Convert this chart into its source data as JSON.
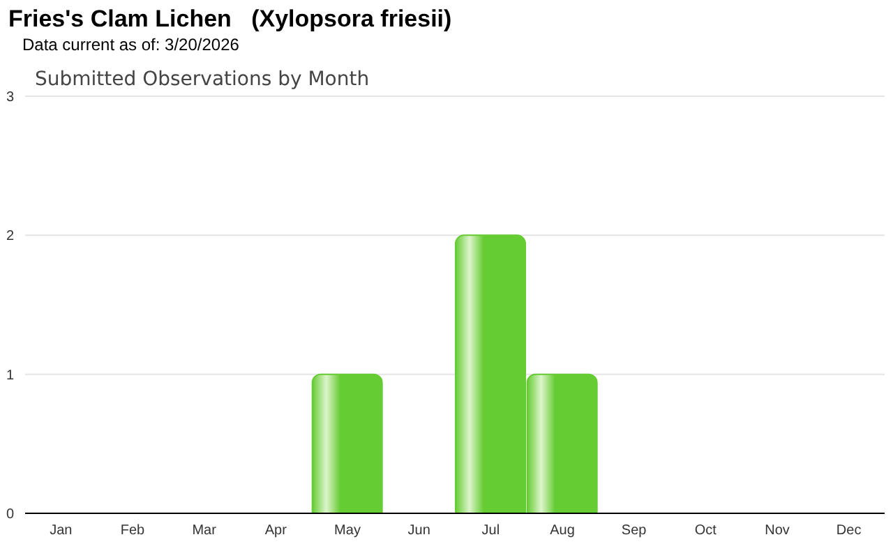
{
  "chart_data": {
    "type": "bar",
    "title": "Fries's Clam Lichen   (Xylopsora friesii)",
    "subtitle": "Data current as of: 3/20/2026",
    "annotations": [
      "Submitted Observations by Month"
    ],
    "categories": [
      "Jan",
      "Feb",
      "Mar",
      "Apr",
      "May",
      "Jun",
      "Jul",
      "Aug",
      "Sep",
      "Oct",
      "Nov",
      "Dec"
    ],
    "values": [
      0,
      0,
      0,
      0,
      1,
      0,
      2,
      1,
      0,
      0,
      0,
      0
    ],
    "color": "#66cc33",
    "ylim": [
      0,
      3
    ],
    "yticks": [
      0,
      1,
      2,
      3
    ],
    "grid": "y",
    "legend": false
  }
}
